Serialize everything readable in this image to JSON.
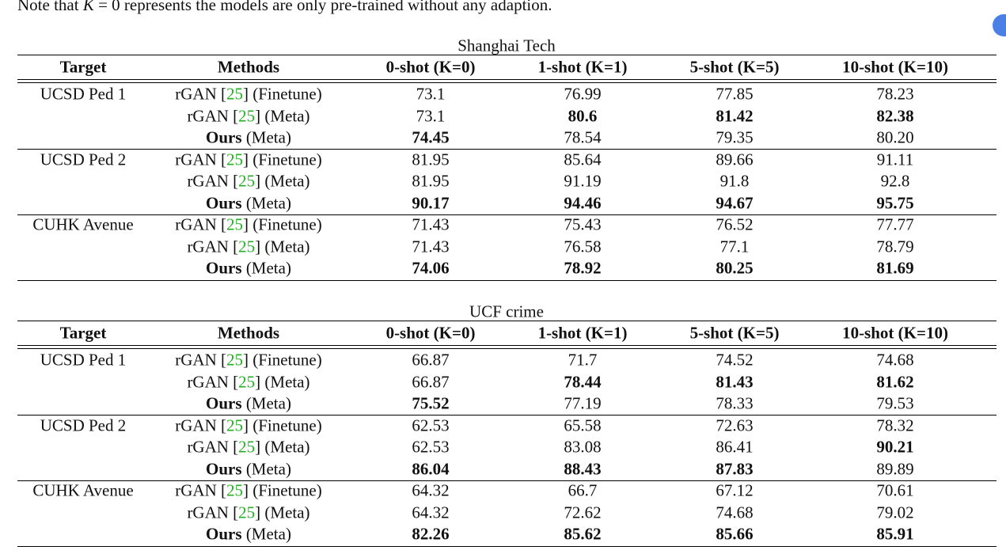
{
  "note": {
    "before": "Note that ",
    "var": "K",
    "after": " = 0 represents the models are only pre-trained without any adaption."
  },
  "tables": [
    {
      "caption": "Shanghai Tech",
      "header": [
        "Target",
        "Methods",
        "0-shot (K=0)",
        "1-shot (K=1)",
        "5-shot (K=5)",
        "10-shot (K=10)"
      ],
      "groups": [
        {
          "target": "UCSD Ped 1",
          "rows": [
            {
              "method": [
                {
                  "text": "rGAN [",
                  "style": "normal"
                },
                {
                  "text": "25",
                  "style": "link"
                },
                {
                  "text": "] (Finetune)",
                  "style": "normal"
                }
              ],
              "values": [
                "73.1",
                "76.99",
                "77.85",
                "78.23"
              ],
              "bold": [
                false,
                false,
                false,
                false
              ]
            },
            {
              "method": [
                {
                  "text": "rGAN [",
                  "style": "normal"
                },
                {
                  "text": "25",
                  "style": "link"
                },
                {
                  "text": "] (Meta)",
                  "style": "normal"
                }
              ],
              "values": [
                "73.1",
                "80.6",
                "81.42",
                "82.38"
              ],
              "bold": [
                false,
                true,
                true,
                true
              ]
            },
            {
              "method": [
                {
                  "text": "Ours",
                  "style": "bold"
                },
                {
                  "text": " (Meta)",
                  "style": "normal"
                }
              ],
              "values": [
                "74.45",
                "78.54",
                "79.35",
                "80.20"
              ],
              "bold": [
                true,
                false,
                false,
                false
              ]
            }
          ]
        },
        {
          "target": "UCSD Ped 2",
          "rows": [
            {
              "method": [
                {
                  "text": "rGAN [",
                  "style": "normal"
                },
                {
                  "text": "25",
                  "style": "link"
                },
                {
                  "text": "] (Finetune)",
                  "style": "normal"
                }
              ],
              "values": [
                "81.95",
                "85.64",
                "89.66",
                "91.11"
              ],
              "bold": [
                false,
                false,
                false,
                false
              ]
            },
            {
              "method": [
                {
                  "text": "rGAN [",
                  "style": "normal"
                },
                {
                  "text": "25",
                  "style": "link"
                },
                {
                  "text": "] (Meta)",
                  "style": "normal"
                }
              ],
              "values": [
                "81.95",
                "91.19",
                "91.8",
                "92.8"
              ],
              "bold": [
                false,
                false,
                false,
                false
              ]
            },
            {
              "method": [
                {
                  "text": "Ours",
                  "style": "bold"
                },
                {
                  "text": " (Meta)",
                  "style": "normal"
                }
              ],
              "values": [
                "90.17",
                "94.46",
                "94.67",
                "95.75"
              ],
              "bold": [
                true,
                true,
                true,
                true
              ]
            }
          ]
        },
        {
          "target": "CUHK Avenue",
          "rows": [
            {
              "method": [
                {
                  "text": "rGAN [",
                  "style": "normal"
                },
                {
                  "text": "25",
                  "style": "link"
                },
                {
                  "text": "] (Finetune)",
                  "style": "normal"
                }
              ],
              "values": [
                "71.43",
                "75.43",
                "76.52",
                "77.77"
              ],
              "bold": [
                false,
                false,
                false,
                false
              ]
            },
            {
              "method": [
                {
                  "text": "rGAN [",
                  "style": "normal"
                },
                {
                  "text": "25",
                  "style": "link"
                },
                {
                  "text": "] (Meta)",
                  "style": "normal"
                }
              ],
              "values": [
                "71.43",
                "76.58",
                "77.1",
                "78.79"
              ],
              "bold": [
                false,
                false,
                false,
                false
              ]
            },
            {
              "method": [
                {
                  "text": "Ours",
                  "style": "bold"
                },
                {
                  "text": " (Meta)",
                  "style": "normal"
                }
              ],
              "values": [
                "74.06",
                "78.92",
                "80.25",
                "81.69"
              ],
              "bold": [
                true,
                true,
                true,
                true
              ]
            }
          ]
        }
      ]
    },
    {
      "caption": "UCF crime",
      "header": [
        "Target",
        "Methods",
        "0-shot (K=0)",
        "1-shot (K=1)",
        "5-shot (K=5)",
        "10-shot (K=10)"
      ],
      "groups": [
        {
          "target": "UCSD Ped 1",
          "rows": [
            {
              "method": [
                {
                  "text": "rGAN [",
                  "style": "normal"
                },
                {
                  "text": "25",
                  "style": "link"
                },
                {
                  "text": "] (Finetune)",
                  "style": "normal"
                }
              ],
              "values": [
                "66.87",
                "71.7",
                "74.52",
                "74.68"
              ],
              "bold": [
                false,
                false,
                false,
                false
              ]
            },
            {
              "method": [
                {
                  "text": "rGAN [",
                  "style": "normal"
                },
                {
                  "text": "25",
                  "style": "link"
                },
                {
                  "text": "] (Meta)",
                  "style": "normal"
                }
              ],
              "values": [
                "66.87",
                "78.44",
                "81.43",
                "81.62"
              ],
              "bold": [
                false,
                true,
                true,
                true
              ]
            },
            {
              "method": [
                {
                  "text": "Ours",
                  "style": "bold"
                },
                {
                  "text": " (Meta)",
                  "style": "normal"
                }
              ],
              "values": [
                "75.52",
                "77.19",
                "78.33",
                "79.53"
              ],
              "bold": [
                true,
                false,
                false,
                false
              ]
            }
          ]
        },
        {
          "target": "UCSD Ped 2",
          "rows": [
            {
              "method": [
                {
                  "text": "rGAN [",
                  "style": "normal"
                },
                {
                  "text": "25",
                  "style": "link"
                },
                {
                  "text": "] (Finetune)",
                  "style": "normal"
                }
              ],
              "values": [
                "62.53",
                "65.58",
                "72.63",
                "78.32"
              ],
              "bold": [
                false,
                false,
                false,
                false
              ]
            },
            {
              "method": [
                {
                  "text": "rGAN [",
                  "style": "normal"
                },
                {
                  "text": "25",
                  "style": "link"
                },
                {
                  "text": "] (Meta)",
                  "style": "normal"
                }
              ],
              "values": [
                "62.53",
                "83.08",
                "86.41",
                "90.21"
              ],
              "bold": [
                false,
                false,
                false,
                true
              ]
            },
            {
              "method": [
                {
                  "text": "Ours",
                  "style": "bold"
                },
                {
                  "text": " (Meta)",
                  "style": "normal"
                }
              ],
              "values": [
                "86.04",
                "88.43",
                "87.83",
                "89.89"
              ],
              "bold": [
                true,
                true,
                true,
                false
              ]
            }
          ]
        },
        {
          "target": "CUHK Avenue",
          "rows": [
            {
              "method": [
                {
                  "text": "rGAN [",
                  "style": "normal"
                },
                {
                  "text": "25",
                  "style": "link"
                },
                {
                  "text": "] (Finetune)",
                  "style": "normal"
                }
              ],
              "values": [
                "64.32",
                "66.7",
                "67.12",
                "70.61"
              ],
              "bold": [
                false,
                false,
                false,
                false
              ]
            },
            {
              "method": [
                {
                  "text": "rGAN [",
                  "style": "normal"
                },
                {
                  "text": "25",
                  "style": "link"
                },
                {
                  "text": "] (Meta)",
                  "style": "normal"
                }
              ],
              "values": [
                "64.32",
                "72.62",
                "74.68",
                "79.02"
              ],
              "bold": [
                false,
                false,
                false,
                false
              ]
            },
            {
              "method": [
                {
                  "text": "Ours",
                  "style": "bold"
                },
                {
                  "text": " (Meta)",
                  "style": "normal"
                }
              ],
              "values": [
                "82.26",
                "85.62",
                "85.66",
                "85.91"
              ],
              "bold": [
                true,
                true,
                true,
                true
              ]
            }
          ]
        }
      ]
    }
  ]
}
